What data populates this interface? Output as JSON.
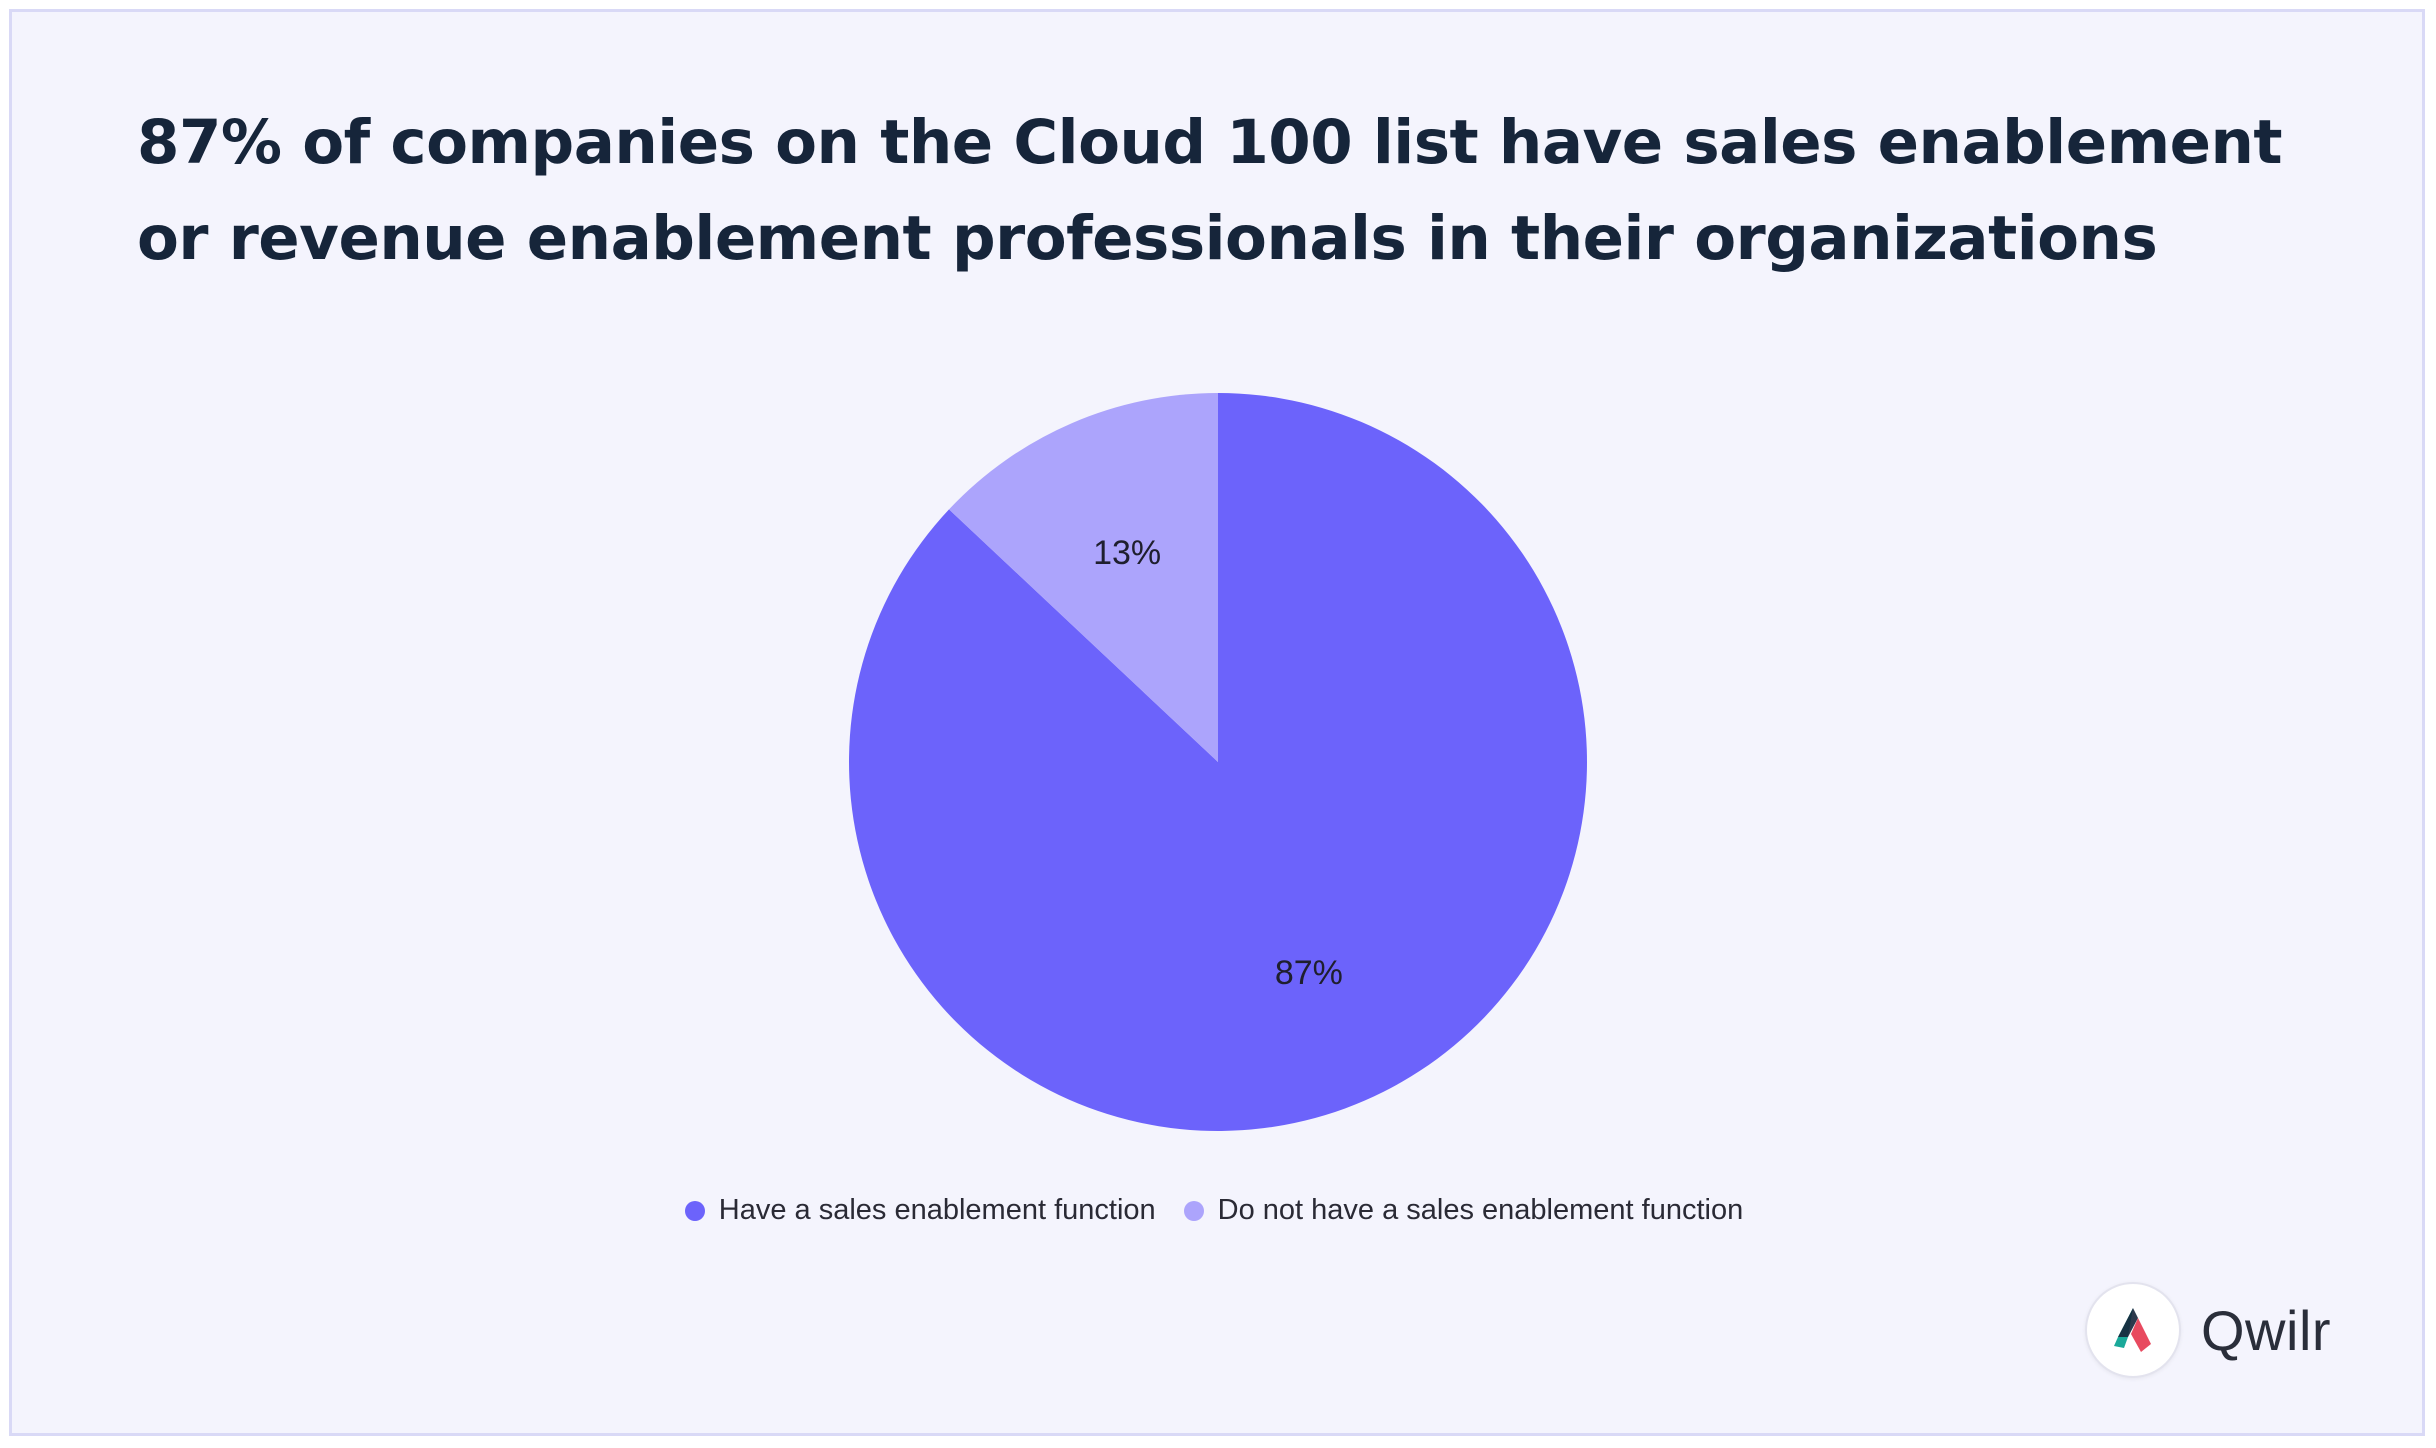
{
  "chart_data": {
    "type": "pie",
    "title": "87% of companies on the Cloud 100 list have sales enablement or revenue enablement professionals in their organizations",
    "slices": [
      {
        "label": "Have a sales enablement function",
        "value": 87,
        "display": "87%",
        "color": "#6c63fb"
      },
      {
        "label": "Do not have a sales enablement function",
        "value": 13,
        "display": "13%",
        "color": "#aca4fc"
      }
    ],
    "legend_position": "bottom",
    "start_angle": "12 o'clock, clockwise"
  },
  "brand": {
    "name": "Qwilr",
    "logo_icon": "qwilr-logo-icon"
  }
}
